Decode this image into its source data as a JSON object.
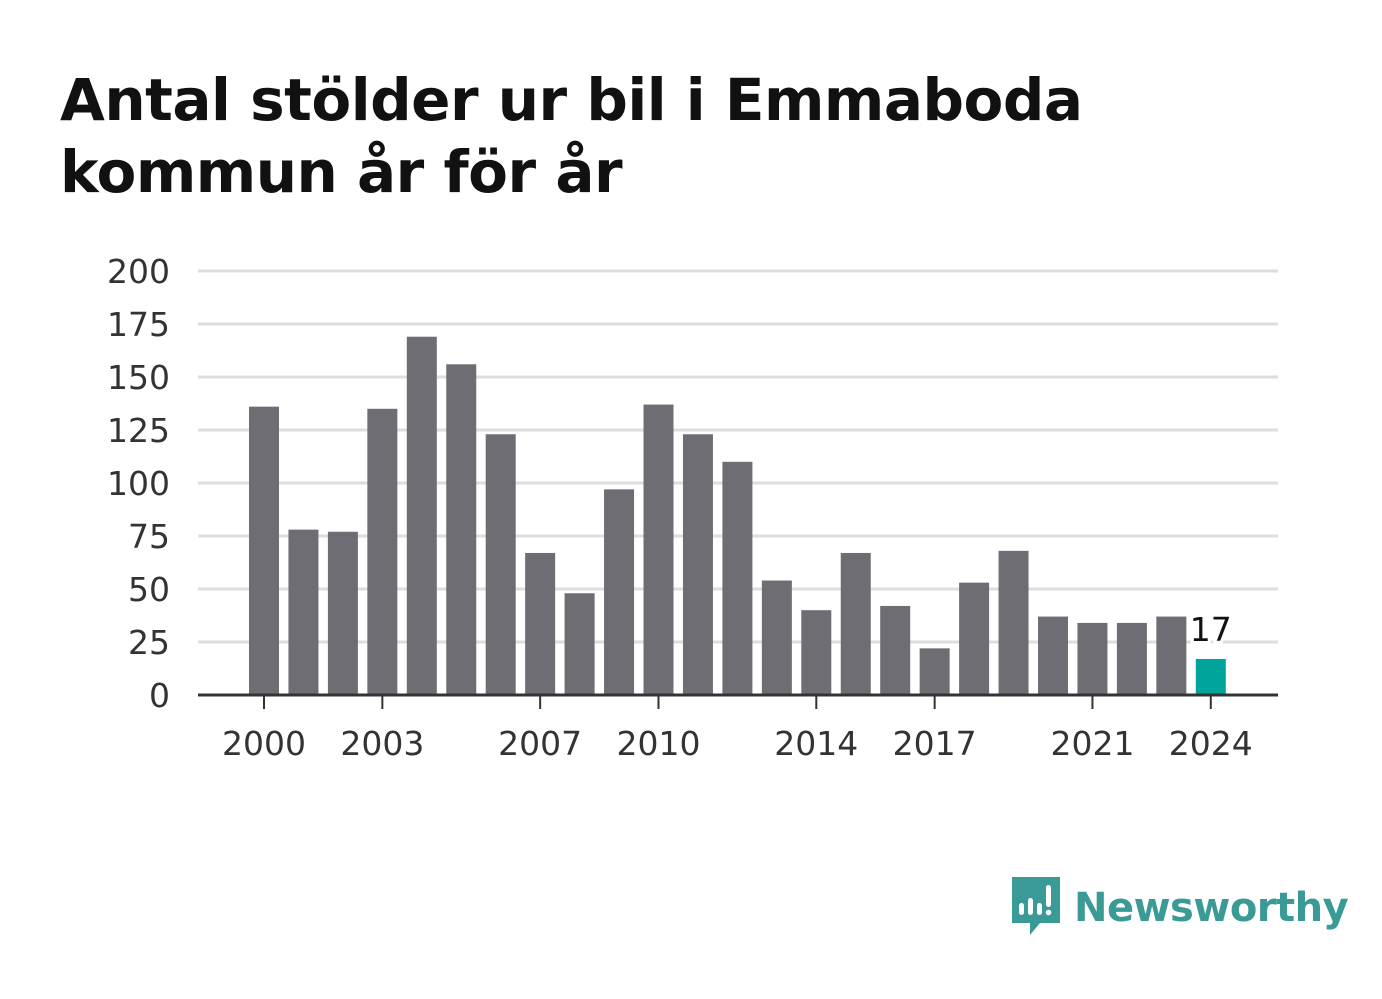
{
  "chart_data": {
    "type": "bar",
    "title": "Antal stölder ur bil i Emmaboda kommun år för år",
    "categories": [
      2000,
      2001,
      2002,
      2003,
      2004,
      2005,
      2006,
      2007,
      2008,
      2009,
      2010,
      2011,
      2012,
      2013,
      2014,
      2015,
      2016,
      2017,
      2018,
      2019,
      2020,
      2021,
      2022,
      2023,
      2024
    ],
    "values": [
      136,
      78,
      77,
      135,
      169,
      156,
      123,
      67,
      48,
      97,
      137,
      123,
      110,
      54,
      40,
      67,
      42,
      22,
      53,
      68,
      37,
      34,
      34,
      37,
      17
    ],
    "x_tick_labels": [
      "2000",
      "2003",
      "2007",
      "2010",
      "2014",
      "2017",
      "2021",
      "2024"
    ],
    "y_ticks": [
      0,
      25,
      50,
      75,
      100,
      125,
      150,
      175,
      200
    ],
    "ylim": [
      0,
      200
    ],
    "grid": true,
    "highlight": {
      "category": 2024,
      "label": "17"
    },
    "colors": {
      "bar": "#6e6d73",
      "highlight": "#00a49a",
      "grid": "#dddddd",
      "axis": "#333333"
    }
  },
  "brand": {
    "name": "Newsworthy",
    "icon": "newsworthy-logo-icon",
    "color": "#3a9a96"
  }
}
